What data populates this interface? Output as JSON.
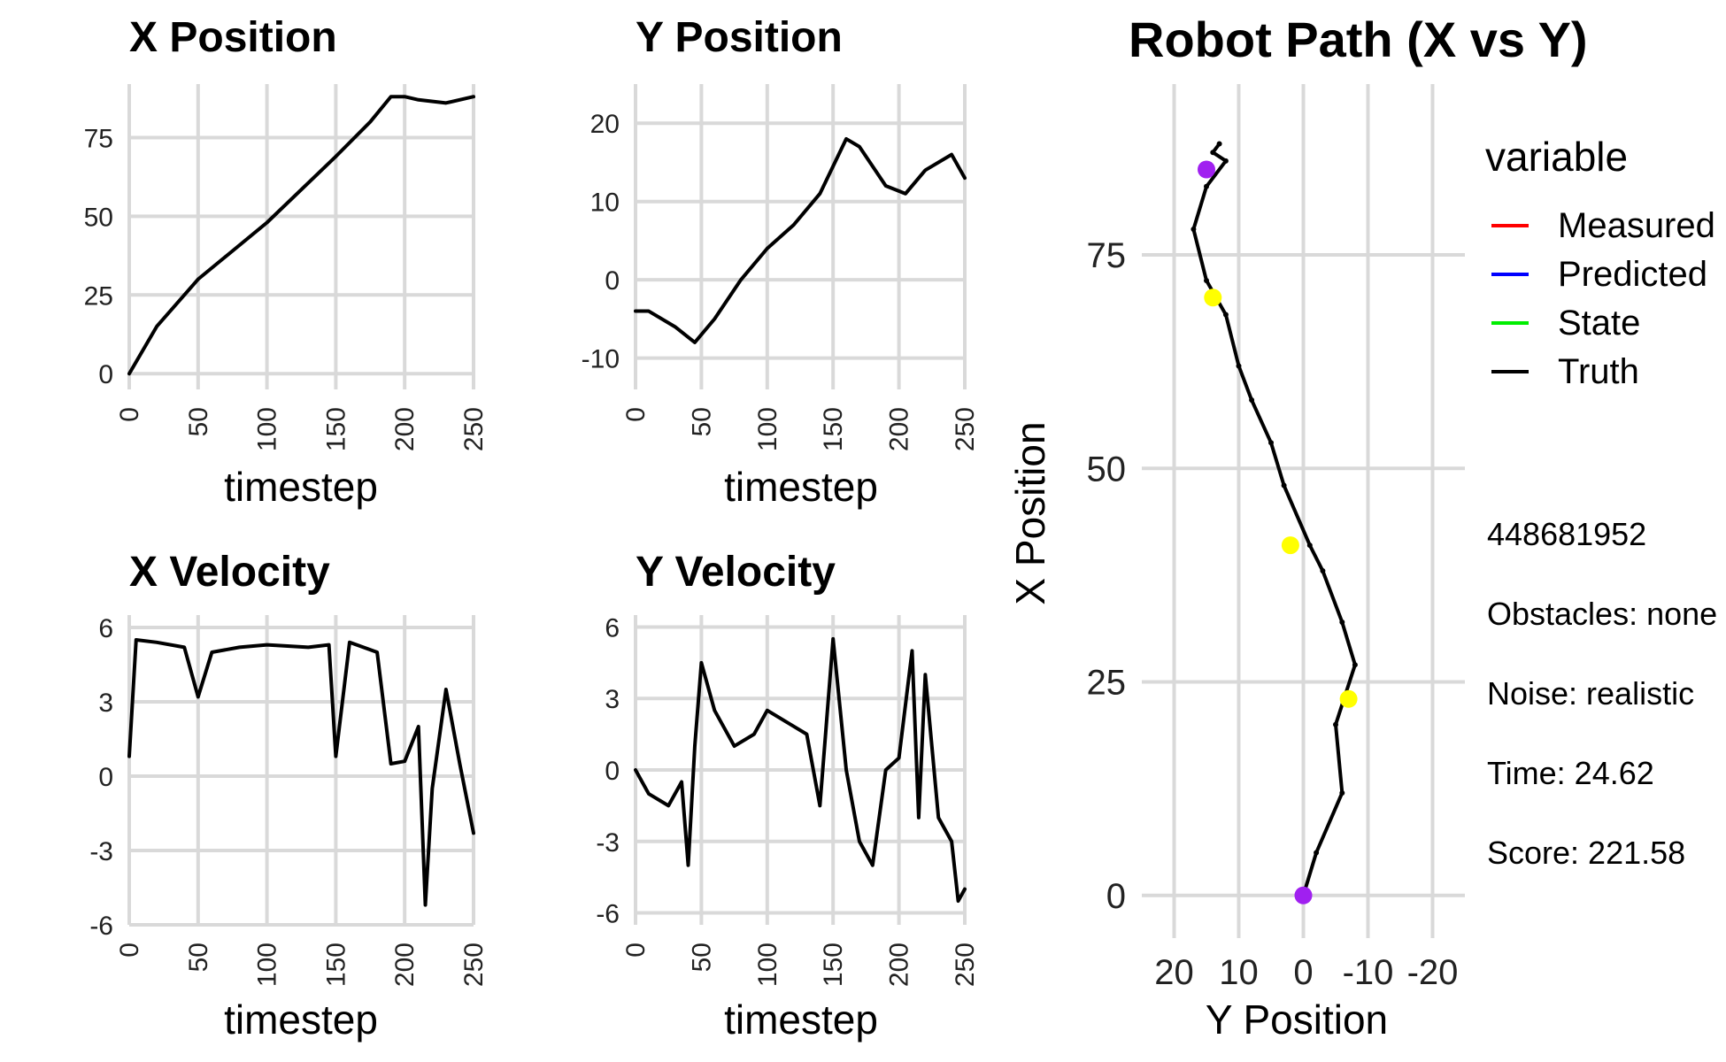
{
  "legend": {
    "title": "variable",
    "items": [
      {
        "label": "Measured",
        "color": "#ff0000"
      },
      {
        "label": "Predicted",
        "color": "#0000ff"
      },
      {
        "label": "State",
        "color": "#00ee00"
      },
      {
        "label": "Truth",
        "color": "#000000"
      }
    ]
  },
  "info": {
    "id": " 448681952",
    "obstacles": "Obstacles: none",
    "noise": "Noise: realistic",
    "time": "Time: 24.62",
    "score": "Score: 221.58"
  },
  "chart_data": [
    {
      "type": "line",
      "title": "X Position",
      "xlabel": "timestep",
      "ylabel": "",
      "xlim": [
        0,
        250
      ],
      "ylim": [
        -5,
        92
      ],
      "xticks": [
        0,
        50,
        100,
        150,
        200,
        250
      ],
      "yticks": [
        0,
        25,
        50,
        75
      ],
      "grid": true,
      "series": [
        {
          "name": "Truth",
          "x": [
            0,
            20,
            50,
            100,
            150,
            175,
            190,
            200,
            210,
            230,
            250
          ],
          "y": [
            0,
            15,
            30,
            48,
            69,
            80,
            88,
            88,
            87,
            86,
            88
          ]
        }
      ]
    },
    {
      "type": "line",
      "title": "Y Position",
      "xlabel": "timestep",
      "ylabel": "",
      "xlim": [
        0,
        250
      ],
      "ylim": [
        -14,
        25
      ],
      "xticks": [
        0,
        50,
        100,
        150,
        200,
        250
      ],
      "yticks": [
        -10,
        0,
        10,
        20
      ],
      "grid": true,
      "series": [
        {
          "name": "Truth",
          "x": [
            0,
            10,
            30,
            45,
            60,
            80,
            100,
            120,
            140,
            160,
            170,
            190,
            205,
            220,
            240,
            250
          ],
          "y": [
            -4,
            -4,
            -6,
            -8,
            -5,
            0,
            4,
            7,
            11,
            18,
            17,
            12,
            11,
            14,
            16,
            13
          ]
        }
      ]
    },
    {
      "type": "line",
      "title": "X Velocity",
      "xlabel": "timestep",
      "ylabel": "",
      "xlim": [
        0,
        250
      ],
      "ylim": [
        -6,
        6.5
      ],
      "xticks": [
        0,
        50,
        100,
        150,
        200,
        250
      ],
      "yticks": [
        -6,
        -3,
        0,
        3,
        6
      ],
      "grid": true,
      "series": [
        {
          "name": "Truth",
          "x": [
            0,
            5,
            20,
            40,
            50,
            60,
            80,
            100,
            130,
            145,
            150,
            160,
            180,
            190,
            200,
            210,
            215,
            220,
            230,
            240,
            250
          ],
          "y": [
            0.8,
            5.5,
            5.4,
            5.2,
            3.2,
            5.0,
            5.2,
            5.3,
            5.2,
            5.3,
            0.8,
            5.4,
            5.0,
            0.5,
            0.6,
            2.0,
            -5.2,
            -0.5,
            3.5,
            0.5,
            -2.3
          ]
        }
      ]
    },
    {
      "type": "line",
      "title": "Y Velocity",
      "xlabel": "timestep",
      "ylabel": "",
      "xlim": [
        0,
        250
      ],
      "ylim": [
        -6.5,
        6.5
      ],
      "xticks": [
        0,
        50,
        100,
        150,
        200,
        250
      ],
      "yticks": [
        -6,
        -3,
        0,
        3,
        6
      ],
      "grid": true,
      "series": [
        {
          "name": "Truth",
          "x": [
            0,
            10,
            25,
            35,
            40,
            45,
            50,
            60,
            75,
            90,
            100,
            115,
            130,
            140,
            150,
            160,
            170,
            180,
            190,
            200,
            210,
            215,
            220,
            230,
            240,
            245,
            250
          ],
          "y": [
            0,
            -1,
            -1.5,
            -0.5,
            -4,
            1,
            4.5,
            2.5,
            1,
            1.5,
            2.5,
            2,
            1.5,
            -1.5,
            5.5,
            0,
            -3,
            -4,
            0,
            0.5,
            5,
            -2,
            4,
            -2,
            -3,
            -5.5,
            -5
          ]
        }
      ]
    },
    {
      "type": "scatter",
      "title": "Robot Path (X vs Y)",
      "xlabel": "Y Position",
      "ylabel": "X Position",
      "xlim": [
        25,
        -25
      ],
      "ylim": [
        -5,
        95
      ],
      "xticks": [
        20,
        10,
        0,
        -10,
        -20
      ],
      "yticks": [
        0,
        25,
        50,
        75
      ],
      "grid": true,
      "series": [
        {
          "name": "Truth",
          "x": [
            0,
            -2,
            -6,
            -5,
            -8,
            -6,
            -3,
            -1,
            3,
            5,
            8,
            10,
            12,
            15,
            17,
            15,
            12,
            14,
            13
          ],
          "y": [
            0,
            5,
            12,
            20,
            27,
            32,
            38,
            41,
            48,
            53,
            58,
            62,
            68,
            72,
            78,
            83,
            86,
            87,
            88
          ]
        }
      ],
      "markers": [
        {
          "x": 0,
          "y": 0,
          "color": "#a020f0"
        },
        {
          "x": -7,
          "y": 23,
          "color": "#ffff00"
        },
        {
          "x": 2,
          "y": 41,
          "color": "#ffff00"
        },
        {
          "x": 14,
          "y": 70,
          "color": "#ffff00"
        },
        {
          "x": 15,
          "y": 85,
          "color": "#a020f0"
        }
      ]
    }
  ]
}
